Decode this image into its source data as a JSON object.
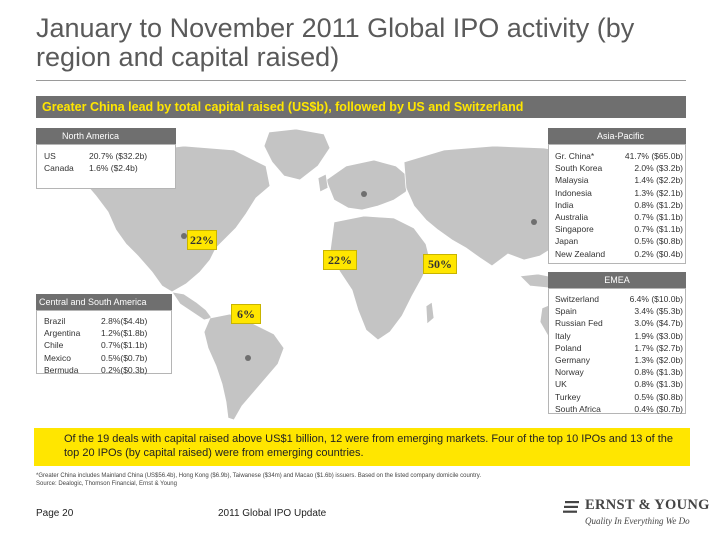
{
  "title": "January to November 2011 Global IPO activity (by region and capital raised)",
  "banner": "Greater China lead by total capital raised (US$b), followed by US and Switzerland",
  "regions": {
    "north_america": {
      "label": "North America",
      "rows": [
        {
          "name": "US",
          "value": "20.7% ($32.2b)"
        },
        {
          "name": "Canada",
          "value": "1.6% ($2.4b)"
        }
      ]
    },
    "central_south_america": {
      "label": "Central and South America",
      "rows": [
        {
          "name": "Brazil",
          "value": "2.8%($4.4b)"
        },
        {
          "name": "Argentina",
          "value": "1.2%($1.8b)"
        },
        {
          "name": "Chile",
          "value": "0.7%($1.1b)"
        },
        {
          "name": "Mexico",
          "value": "0.5%($0.7b)"
        },
        {
          "name": "Bermuda",
          "value": "0.2%($0.3b)"
        }
      ]
    },
    "asia_pacific": {
      "label": "Asia-Pacific",
      "rows": [
        {
          "name": "Gr. China*",
          "value": "41.7% ($65.0b)"
        },
        {
          "name": "South Korea",
          "value": "2.0% ($3.2b)"
        },
        {
          "name": "Malaysia",
          "value": "1.4% ($2.2b)"
        },
        {
          "name": "Indonesia",
          "value": "1.3% ($2.1b)"
        },
        {
          "name": "India",
          "value": "0.8% ($1.2b)"
        },
        {
          "name": "Australia",
          "value": "0.7% ($1.1b)"
        },
        {
          "name": "Singapore",
          "value": "0.7% ($1.1b)"
        },
        {
          "name": "Japan",
          "value": "0.5% ($0.8b)"
        },
        {
          "name": "New Zealand",
          "value": "0.2% ($0.4b)"
        }
      ]
    },
    "emea": {
      "label": "EMEA",
      "rows": [
        {
          "name": "Switzerland",
          "value": "6.4% ($10.0b)"
        },
        {
          "name": "Spain",
          "value": "3.4% ($5.3b)"
        },
        {
          "name": "Russian Fed",
          "value": "3.0% ($4.7b)"
        },
        {
          "name": "Italy",
          "value": "1.9% ($3.0b)"
        },
        {
          "name": "Poland",
          "value": "1.7% ($2.7b)"
        },
        {
          "name": "Germany",
          "value": "1.3% ($2.0b)"
        },
        {
          "name": "Norway",
          "value": "0.8% ($1.3b)"
        },
        {
          "name": "UK",
          "value": "0.8% ($1.3b)"
        },
        {
          "name": "Turkey",
          "value": "0.5% ($0.8b)"
        },
        {
          "name": "South Africa",
          "value": "0.4% ($0.7b)"
        }
      ]
    }
  },
  "map_labels": {
    "north_america": "22%",
    "emea": "22%",
    "asia_pacific": "50%",
    "central_south_america": "6%"
  },
  "callout": "Of the 19 deals with capital raised above US$1 billion, 12 were from emerging markets. Four of the top 10 IPOs and 13 of the top 20 IPOs (by capital raised) were from emerging countries.",
  "footnote_1": "*Greater China includes Mainland China (US$56.4b), Hong Kong ($6.9b), Taiwanese ($34m) and Macao ($1.6b) issuers. Based on the listed company domicile country.",
  "footnote_2": "Source: Dealogic, Thomson Financial, Ernst & Young",
  "footer": {
    "page": "Page 20",
    "document": "2011 Global IPO Update"
  },
  "logo": {
    "name": "ERNST & YOUNG",
    "tagline": "Quality In Everything We Do"
  },
  "colors": {
    "accent_yellow": "#ffe600",
    "banner_gray": "#6f6f6f",
    "land_gray": "#c4c4c4"
  }
}
